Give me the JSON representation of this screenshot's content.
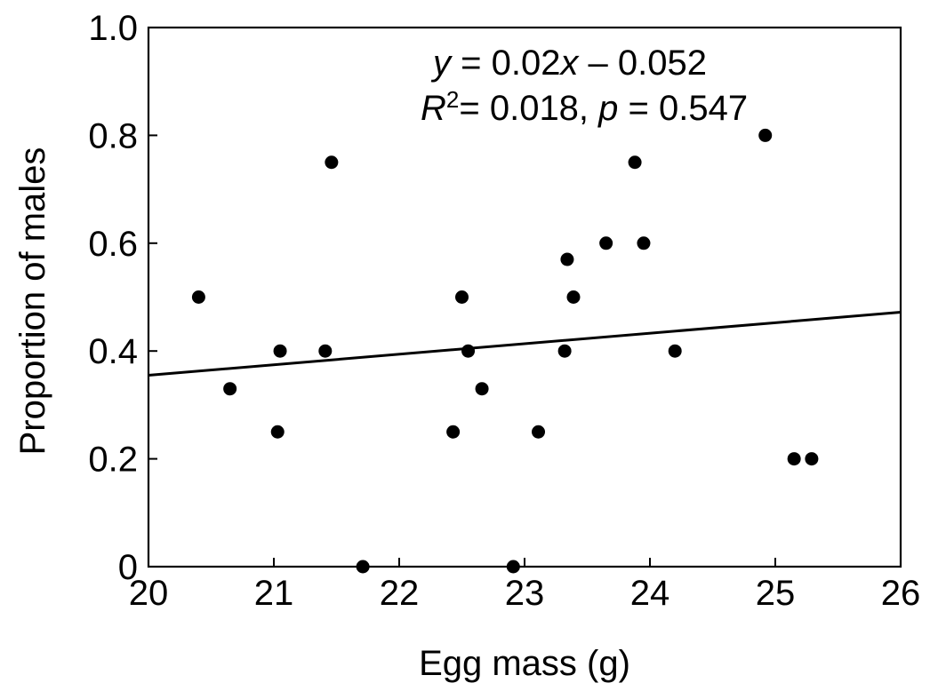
{
  "chart_data": {
    "type": "scatter",
    "xlabel": "Egg mass (g)",
    "ylabel": "Proportion of males",
    "xlim": [
      20,
      26
    ],
    "ylim": [
      0,
      1.0
    ],
    "x_ticks": [
      20,
      21,
      22,
      23,
      24,
      25,
      26
    ],
    "x_tick_labels": [
      "20",
      "21",
      "22",
      "23",
      "24",
      "25",
      "26"
    ],
    "y_ticks": [
      0,
      0.2,
      0.4,
      0.6,
      0.8,
      1.0
    ],
    "y_tick_labels": [
      "0",
      "0.2",
      "0.4",
      "0.6",
      "0.8",
      "1.0"
    ],
    "grid": false,
    "points": [
      {
        "x": 20.4,
        "y": 0.5
      },
      {
        "x": 20.65,
        "y": 0.33
      },
      {
        "x": 21.03,
        "y": 0.25
      },
      {
        "x": 21.05,
        "y": 0.4
      },
      {
        "x": 21.41,
        "y": 0.4
      },
      {
        "x": 21.46,
        "y": 0.75
      },
      {
        "x": 21.71,
        "y": 0.0
      },
      {
        "x": 22.43,
        "y": 0.25
      },
      {
        "x": 22.5,
        "y": 0.5
      },
      {
        "x": 22.55,
        "y": 0.4
      },
      {
        "x": 22.66,
        "y": 0.33
      },
      {
        "x": 22.91,
        "y": 0.0
      },
      {
        "x": 23.11,
        "y": 0.25
      },
      {
        "x": 23.32,
        "y": 0.4
      },
      {
        "x": 23.34,
        "y": 0.57
      },
      {
        "x": 23.39,
        "y": 0.5
      },
      {
        "x": 23.65,
        "y": 0.6
      },
      {
        "x": 23.88,
        "y": 0.75
      },
      {
        "x": 23.95,
        "y": 0.6
      },
      {
        "x": 24.2,
        "y": 0.4
      },
      {
        "x": 24.92,
        "y": 0.8
      },
      {
        "x": 25.15,
        "y": 0.2
      },
      {
        "x": 25.29,
        "y": 0.2
      }
    ],
    "trendline": {
      "x": [
        20,
        26
      ],
      "y": [
        0.355,
        0.472
      ]
    },
    "annotations": {
      "equation": {
        "y_var": "y",
        "eq_middle": " = 0.02",
        "x_var": "x",
        "eq_tail": " – 0.052"
      },
      "stats": {
        "r_var": "R",
        "r_sup": "2",
        "r_mid": "= 0.018, ",
        "p_var": "p",
        "p_tail": " = 0.547"
      }
    }
  }
}
